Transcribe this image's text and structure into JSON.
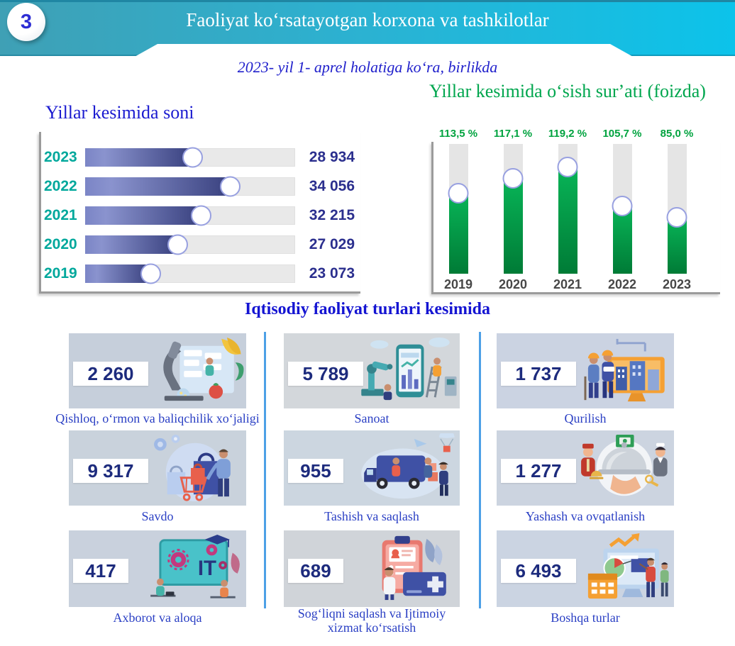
{
  "header": {
    "badge": "3",
    "title": "Faoliyat koʻrsatayotgan korxona va tashkilotlar",
    "subtitle": "2023- yil 1- aprel holatiga koʻra, birlikda"
  },
  "colors": {
    "header_gradient_start": "#3fa0b5",
    "header_gradient_end": "#0cc3ea",
    "count_title_blue": "#1b1bd0",
    "year_teal": "#00a89c",
    "value_navy": "#2b2f8e",
    "growth_green": "#00a64e",
    "section_title_blue": "#1414d2",
    "card_value_navy": "#1d2b7d",
    "card_label_blue": "#2a3fc4",
    "divider_blue": "#4da0e6",
    "bar_fill_dark": "#39417f",
    "bar_fill_light": "#8a93ce",
    "green_fill_top": "#08b457",
    "green_fill_bottom": "#007b36"
  },
  "chart_data": [
    {
      "type": "bar",
      "orientation": "horizontal",
      "title": "Yillar kesimida soni",
      "categories": [
        "2023",
        "2022",
        "2021",
        "2020",
        "2019"
      ],
      "values": [
        28934,
        34056,
        32215,
        27029,
        23073
      ],
      "value_labels": [
        "28 934",
        "34 056",
        "32 215",
        "27 029",
        "23 073"
      ],
      "fill_pct": [
        51,
        69,
        55,
        44,
        31
      ],
      "grid": false,
      "legend": "none",
      "marker": "white-circle"
    },
    {
      "type": "bar",
      "orientation": "vertical",
      "title": "Yillar kesimida oʻsish surʼati (foizda)",
      "categories": [
        "2019",
        "2020",
        "2021",
        "2022",
        "2023"
      ],
      "values": [
        113.5,
        117.1,
        119.2,
        105.7,
        85.0
      ],
      "value_labels": [
        "113,5 %",
        "117,1 %",
        "119,2 %",
        "105,7 %",
        "85,0 %"
      ],
      "fill_pct": [
        62,
        73,
        82,
        52,
        43
      ],
      "ylim": [
        0,
        130
      ],
      "grid": false,
      "legend": "none",
      "marker": "white-circle"
    },
    {
      "type": "table",
      "title": "Iqtisodiy faoliyat turlari kesimida",
      "columns": [
        "label",
        "value"
      ],
      "rows": [
        {
          "label": "Qishloq, oʻrmon va baliqchilik xoʻjaligi",
          "value": 2260,
          "value_label": "2 260",
          "icon": "agriculture-illustration"
        },
        {
          "label": "Sanoat",
          "value": 5789,
          "value_label": "5 789",
          "icon": "industry-illustration"
        },
        {
          "label": "Qurilish",
          "value": 1737,
          "value_label": "1 737",
          "icon": "construction-illustration"
        },
        {
          "label": "Savdo",
          "value": 9317,
          "value_label": "9 317",
          "icon": "trade-illustration"
        },
        {
          "label": "Tashish va saqlash",
          "value": 955,
          "value_label": "955",
          "icon": "transport-illustration"
        },
        {
          "label": "Yashash va ovqatlanish",
          "value": 1277,
          "value_label": "1 277",
          "icon": "hospitality-illustration"
        },
        {
          "label": "Axborot va aloqa",
          "value": 417,
          "value_label": "417",
          "icon": "it-illustration"
        },
        {
          "label": "Sogʻliqni saqlash va Ijtimoiy xizmat koʻrsatish",
          "value": 689,
          "value_label": "689",
          "icon": "health-illustration"
        },
        {
          "label": "Boshqa turlar",
          "value": 6493,
          "value_label": "6 493",
          "icon": "other-illustration"
        }
      ]
    }
  ]
}
